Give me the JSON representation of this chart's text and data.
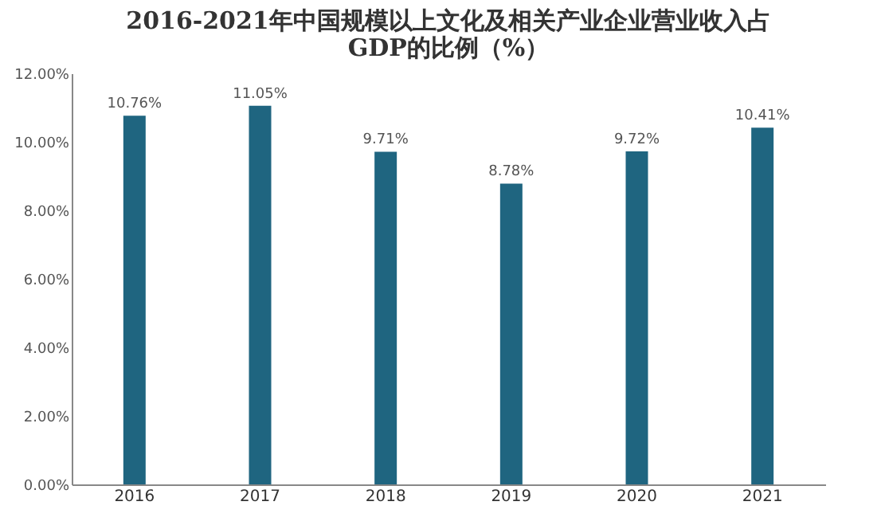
{
  "chart_data": {
    "type": "bar",
    "title": "2016-2021年中国规模以上文化及相关产业企业营业收入占GDP的比例（%）",
    "categories": [
      "2016",
      "2017",
      "2018",
      "2019",
      "2020",
      "2021"
    ],
    "values": [
      10.76,
      11.05,
      9.71,
      8.78,
      9.72,
      10.41
    ],
    "value_labels": [
      "10.76%",
      "11.05%",
      "9.71%",
      "8.78%",
      "9.72%",
      "10.41%"
    ],
    "color": "#1f6580",
    "ylim": [
      0,
      12
    ],
    "yticks": [
      {
        "value": 0,
        "label": "0.00%"
      },
      {
        "value": 2,
        "label": "2.00%"
      },
      {
        "value": 4,
        "label": "4.00%"
      },
      {
        "value": 6,
        "label": "6.00%"
      },
      {
        "value": 8,
        "label": "8.00%"
      },
      {
        "value": 10,
        "label": "10.00%"
      },
      {
        "value": 12,
        "label": "12.00%"
      }
    ],
    "grid": false
  }
}
